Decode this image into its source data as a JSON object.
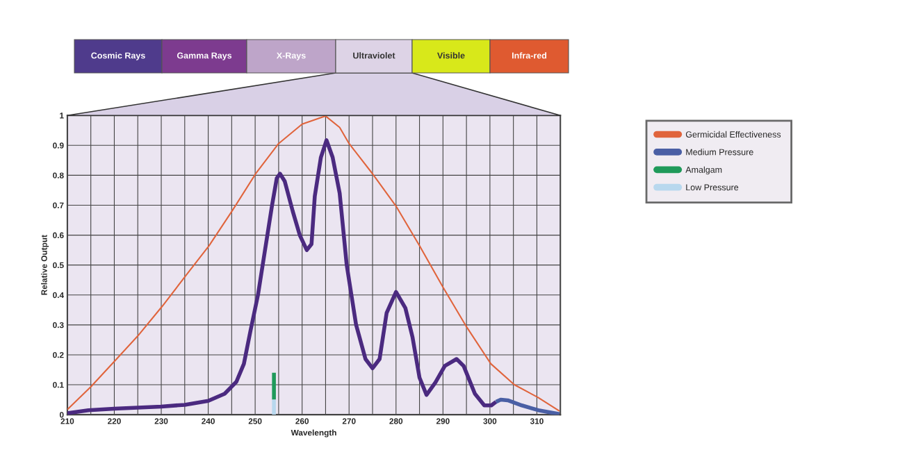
{
  "chart_data": {
    "type": "line",
    "xlabel": "Wavelength",
    "ylabel": "Relative Output",
    "annotations": [
      "Cosmic Rays",
      "Gamma Rays",
      "X-Rays",
      "Ultraviolet",
      "Visible",
      "Infra-red"
    ],
    "xlim": [
      210,
      315
    ],
    "ylim": [
      0,
      1
    ],
    "xticks": [
      210,
      {
        "value": 215,
        "label": null
      },
      220,
      {
        "value": 225,
        "label": null
      },
      230,
      {
        "value": 235,
        "label": null
      },
      240,
      {
        "value": 245,
        "label": null
      },
      250,
      {
        "value": 255,
        "label": null
      },
      260,
      {
        "value": 265,
        "label": null
      },
      270,
      {
        "value": 275,
        "label": null
      },
      280,
      {
        "value": 285,
        "label": null
      },
      290,
      {
        "value": 295,
        "label": null
      },
      300,
      {
        "value": 305,
        "label": null
      },
      310
    ],
    "yticks": [
      0,
      0.1,
      0.2,
      0.3,
      0.4,
      0.5,
      0.6,
      0.7,
      0.8,
      0.9,
      1
    ],
    "grid": true,
    "legend": "right",
    "marker": "none",
    "line_style": "solid",
    "series": [
      {
        "name": "Germicidal Effectiveness",
        "color": "#e0643c",
        "x": [
          210,
          215,
          220,
          225,
          230.3,
          235.2,
          240.2,
          245.1,
          250.1,
          255,
          260,
          265,
          268,
          270,
          275,
          280,
          285,
          290,
          295,
          300.2,
          305.2,
          310.2,
          314.8
        ],
        "values": [
          0.017,
          0.093,
          0.178,
          0.263,
          0.364,
          0.464,
          0.565,
          0.681,
          0.805,
          0.906,
          0.971,
          0.998,
          0.96,
          0.906,
          0.805,
          0.697,
          0.565,
          0.426,
          0.294,
          0.17,
          0.1,
          0.058,
          0.012
        ]
      },
      {
        "color": "#4b2a80",
        "x": [
          210,
          214.5,
          220,
          230,
          235,
          240,
          243.5,
          246,
          247.6,
          249,
          250.6,
          252,
          253.6,
          254.6,
          255.3,
          256.3,
          258,
          259.5,
          261,
          262,
          262.7,
          264,
          265.2,
          266.5,
          268,
          269.5,
          271.5,
          273.5,
          275,
          276.5,
          278,
          280,
          282,
          283.5,
          285,
          286.5,
          288.4,
          290.4,
          292.9,
          294.4,
          296.8,
          298.8,
          300.3,
          301.3
        ],
        "values": [
          0.005,
          0.015,
          0.02,
          0.027,
          0.033,
          0.046,
          0.07,
          0.11,
          0.17,
          0.28,
          0.4,
          0.54,
          0.7,
          0.79,
          0.805,
          0.78,
          0.68,
          0.6,
          0.55,
          0.57,
          0.73,
          0.86,
          0.917,
          0.86,
          0.74,
          0.5,
          0.3,
          0.186,
          0.155,
          0.186,
          0.34,
          0.41,
          0.356,
          0.26,
          0.124,
          0.066,
          0.108,
          0.163,
          0.186,
          0.163,
          0.07,
          0.031,
          0.031,
          0.043
        ]
      },
      {
        "name": "Medium Pressure",
        "color": "#4a5fa5",
        "x": [
          301.3,
          302.3,
          303.8,
          306.8,
          310.3,
          314.8
        ],
        "values": [
          0.043,
          0.05,
          0.048,
          0.031,
          0.015,
          0.002
        ]
      },
      {
        "name": "Amalgam",
        "color": "#1f9a5a",
        "x": [
          254,
          254
        ],
        "values": [
          0.05,
          0.14
        ]
      },
      {
        "name": "Low Pressure",
        "color": "#b8d8ee",
        "x": [
          254,
          254
        ],
        "values": [
          0,
          0.05
        ]
      }
    ]
  }
}
